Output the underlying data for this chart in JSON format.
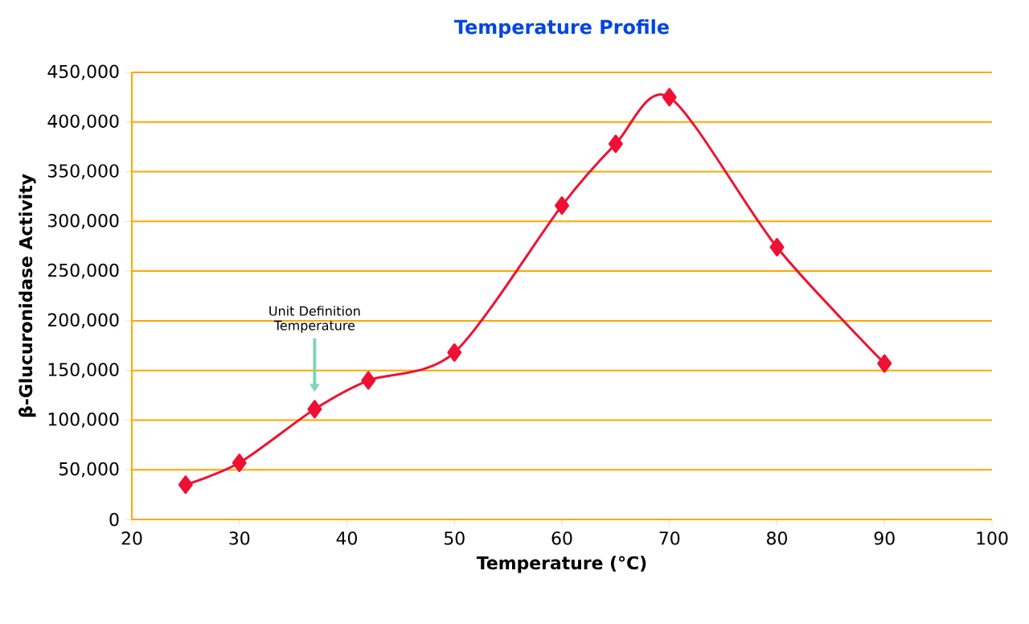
{
  "chart_data": {
    "type": "line",
    "title": "Temperature Profile",
    "xlabel": "Temperature (°C)",
    "ylabel": "β-Glucuronidase Activity",
    "x": [
      25,
      30,
      37,
      42,
      50,
      60,
      65,
      70,
      80,
      90
    ],
    "values": [
      35000,
      57000,
      111000,
      140000,
      168000,
      316000,
      378000,
      425000,
      274000,
      157000
    ],
    "color": "#ee1133",
    "marker": "diamond",
    "line_style": "solid",
    "grid": "y",
    "xlim": [
      20,
      100
    ],
    "xticks": [
      20,
      30,
      40,
      50,
      60,
      70,
      80,
      90,
      100
    ],
    "ylim": [
      0,
      450000
    ],
    "yticks": [
      0,
      {
        "value": 50000,
        "label": "50,000"
      },
      {
        "value": 100000,
        "label": "100,000"
      },
      {
        "value": 150000,
        "label": "150,000"
      },
      {
        "value": 200000,
        "label": "200,000"
      },
      {
        "value": 250000,
        "label": "250,000"
      },
      {
        "value": 300000,
        "label": "300,000"
      },
      {
        "value": 350000,
        "label": "350,000"
      },
      {
        "value": 400000,
        "label": "400,000"
      },
      {
        "value": 450000,
        "label": "450,000"
      }
    ],
    "annotations": [
      "Unit Definition Temperature"
    ]
  }
}
